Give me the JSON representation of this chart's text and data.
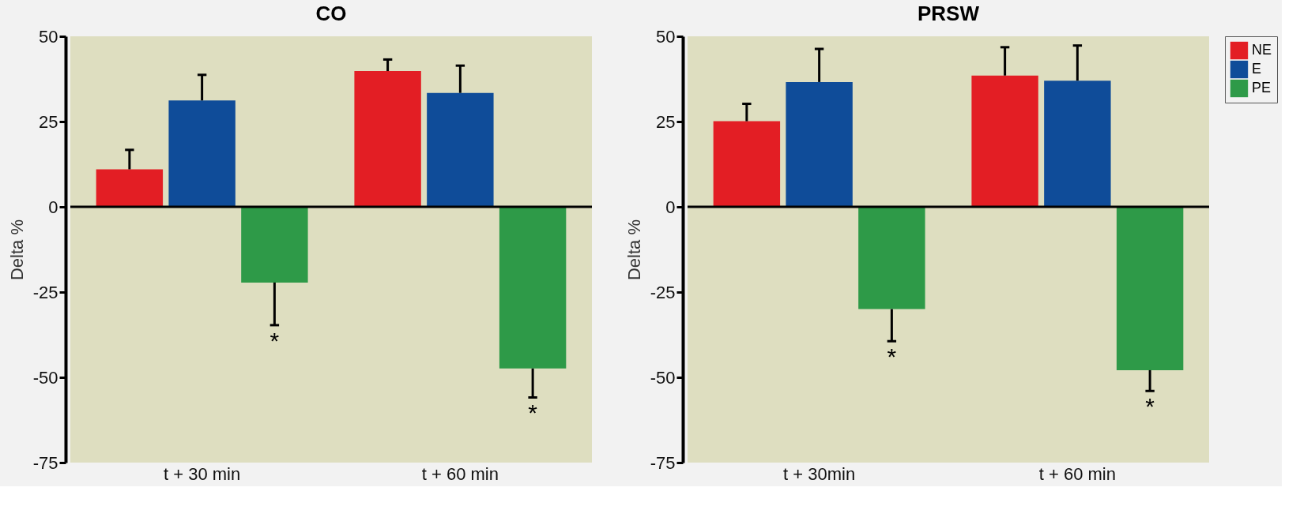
{
  "chart_data": [
    {
      "type": "bar",
      "title": "CO",
      "ylabel": "Delta %",
      "categories": [
        "t + 30 min",
        "t + 60 min"
      ],
      "series": [
        {
          "name": "NE",
          "color": "#e31e24",
          "values": [
            11,
            39.8
          ],
          "errors": [
            [
              11,
              16.7
            ],
            [
              39.8,
              43.2
            ]
          ]
        },
        {
          "name": "E",
          "color": "#0f4c99",
          "values": [
            31.2,
            33.4
          ],
          "errors": [
            [
              31.2,
              38.7
            ],
            [
              33.4,
              41.4
            ]
          ]
        },
        {
          "name": "PE",
          "color": "#2e9a48",
          "values": [
            -22.2,
            -47.4
          ],
          "errors": [
            [
              -34.7,
              -22.2
            ],
            [
              -55.9,
              -47.4
            ]
          ]
        }
      ],
      "ylim": [
        -75,
        50
      ],
      "yticks": [
        -75,
        -50,
        -25,
        0,
        25,
        50
      ],
      "grid": false,
      "legend": "right",
      "ref_lines": [
        {
          "axis": "y",
          "value": 0,
          "color": "#000000"
        }
      ],
      "annotations": [
        "*",
        "*"
      ]
    },
    {
      "type": "bar",
      "title": "PRSW",
      "ylabel": "Delta %",
      "categories": [
        "t + 30min",
        "t + 60 min"
      ],
      "series": [
        {
          "name": "NE",
          "color": "#e31e24",
          "values": [
            25.1,
            38.5
          ],
          "errors": [
            [
              25.1,
              30.2
            ],
            [
              38.5,
              46.8
            ]
          ]
        },
        {
          "name": "E",
          "color": "#0f4c99",
          "values": [
            36.6,
            37.0
          ],
          "errors": [
            [
              36.6,
              46.3
            ],
            [
              37.0,
              47.3
            ]
          ]
        },
        {
          "name": "PE",
          "color": "#2e9a48",
          "values": [
            -30.0,
            -47.9
          ],
          "errors": [
            [
              -39.4,
              -30.0
            ],
            [
              -54.0,
              -47.9
            ]
          ]
        }
      ],
      "ylim": [
        -75,
        50
      ],
      "yticks": [
        -75,
        -50,
        -25,
        0,
        25,
        50
      ],
      "grid": false,
      "legend": "right",
      "ref_lines": [
        {
          "axis": "y",
          "value": 0,
          "color": "#000000"
        }
      ],
      "annotations": [
        "*",
        "*"
      ]
    }
  ]
}
